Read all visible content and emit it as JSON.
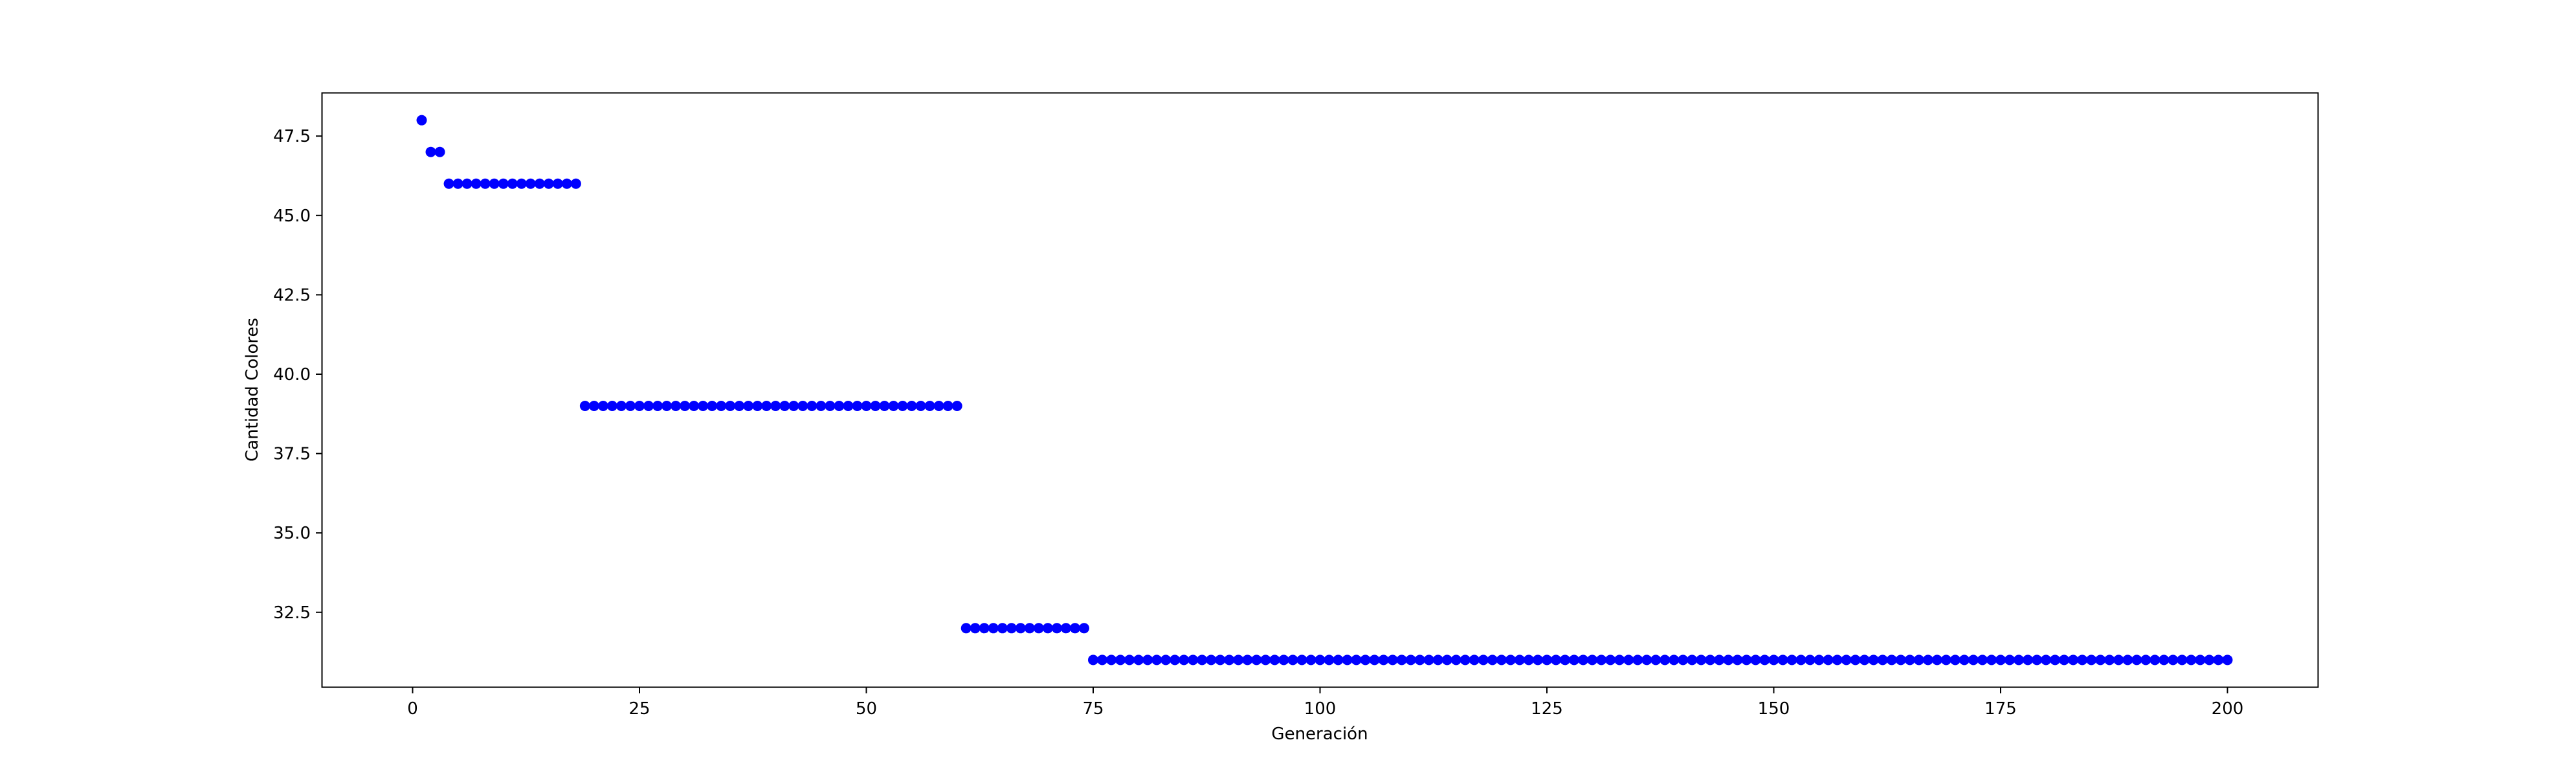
{
  "chart_data": {
    "type": "scatter",
    "xlabel": "Generación",
    "ylabel": "Cantidad Colores",
    "xlim": [
      -9.95,
      209.95
    ],
    "ylim": [
      30.15,
      48.85
    ],
    "xticks": [
      0,
      25,
      50,
      75,
      100,
      125,
      150,
      175,
      200
    ],
    "xtick_labels": [
      "0",
      "25",
      "50",
      "75",
      "100",
      "125",
      "150",
      "175",
      "200"
    ],
    "yticks": [
      32.5,
      35.0,
      37.5,
      40.0,
      42.5,
      45.0,
      47.5
    ],
    "ytick_labels": [
      "32.5",
      "35.0",
      "37.5",
      "40.0",
      "42.5",
      "45.0",
      "47.5"
    ],
    "grid": false,
    "marker_color": "#0000ff",
    "series": [
      {
        "segments": [
          {
            "x_start": 1,
            "x_end": 1,
            "y": 48
          },
          {
            "x_start": 2,
            "x_end": 3,
            "y": 47
          },
          {
            "x_start": 4,
            "x_end": 18,
            "y": 46
          },
          {
            "x_start": 19,
            "x_end": 60,
            "y": 39
          },
          {
            "x_start": 61,
            "x_end": 74,
            "y": 32
          },
          {
            "x_start": 75,
            "x_end": 200,
            "y": 31
          }
        ]
      }
    ]
  }
}
